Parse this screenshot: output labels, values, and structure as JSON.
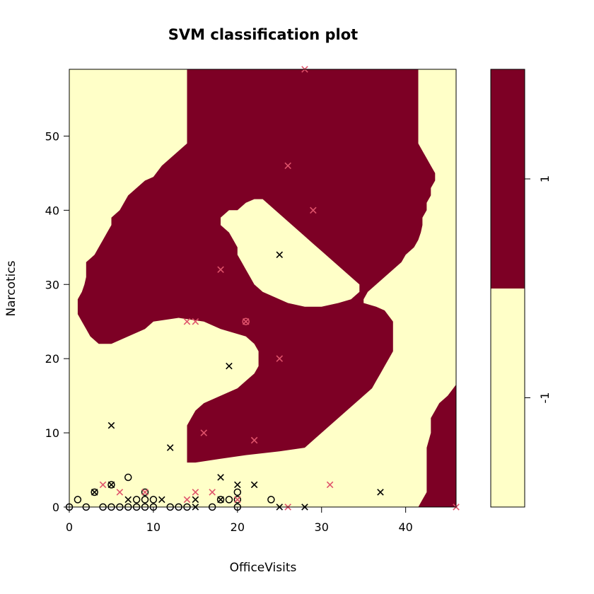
{
  "chart_data": {
    "type": "scatter",
    "title": "SVM classification plot",
    "xlabel": "OfficeVisits",
    "ylabel": "Narcotics",
    "xlim": [
      0,
      46
    ],
    "ylim": [
      0,
      59
    ],
    "xticks": [
      "0",
      "10",
      "20",
      "30",
      "40"
    ],
    "yticks": [
      "0",
      "10",
      "20",
      "30",
      "40",
      "50"
    ],
    "grid": false,
    "legend": {
      "placement": "right",
      "levels": [
        "-1",
        "1"
      ],
      "colors": [
        "#FFFFC8",
        "#7D0025"
      ]
    },
    "region_color_neg": "#FFFFC8",
    "region_color_pos": "#7D0025",
    "region_pos_polygons": [
      [
        [
          14,
          59
        ],
        [
          41.5,
          59
        ],
        [
          41.5,
          49
        ],
        [
          42,
          48
        ],
        [
          42.5,
          47
        ],
        [
          43,
          46
        ],
        [
          43.5,
          45
        ],
        [
          43.5,
          44
        ],
        [
          43,
          43
        ],
        [
          43,
          42
        ],
        [
          42.5,
          41
        ],
        [
          42.5,
          40
        ],
        [
          42,
          39
        ],
        [
          42,
          38
        ],
        [
          41.8,
          37
        ],
        [
          41.5,
          36
        ],
        [
          41,
          35
        ],
        [
          40,
          34
        ],
        [
          39.5,
          33
        ],
        [
          38.5,
          32
        ],
        [
          37.5,
          31
        ],
        [
          36.5,
          30
        ],
        [
          35.5,
          29
        ],
        [
          35,
          28
        ],
        [
          35,
          27.5
        ],
        [
          36.5,
          27
        ],
        [
          37.5,
          26.5
        ],
        [
          38.5,
          25
        ],
        [
          38.5,
          23
        ],
        [
          38.5,
          21
        ],
        [
          38,
          20
        ],
        [
          37.5,
          19
        ],
        [
          37,
          18
        ],
        [
          36.5,
          17
        ],
        [
          36,
          16
        ],
        [
          35,
          15
        ],
        [
          34,
          14
        ],
        [
          33,
          13
        ],
        [
          32,
          12
        ],
        [
          31,
          11
        ],
        [
          30,
          10
        ],
        [
          29,
          9
        ],
        [
          28,
          8
        ],
        [
          25,
          7.5
        ],
        [
          21,
          7
        ],
        [
          18,
          6.5
        ],
        [
          15,
          6
        ],
        [
          14,
          6
        ],
        [
          14,
          8
        ],
        [
          14,
          11
        ],
        [
          14.5,
          12
        ],
        [
          15,
          13
        ],
        [
          16,
          14
        ],
        [
          18,
          15
        ],
        [
          20,
          16
        ],
        [
          21,
          17
        ],
        [
          22,
          18
        ],
        [
          22.5,
          19
        ],
        [
          22.5,
          20
        ],
        [
          22.5,
          21
        ],
        [
          22,
          22
        ],
        [
          21,
          23
        ],
        [
          18,
          24
        ],
        [
          16,
          25
        ],
        [
          13,
          25.5
        ],
        [
          10,
          25
        ],
        [
          9,
          24
        ],
        [
          7,
          23
        ],
        [
          5,
          22
        ],
        [
          3.5,
          22
        ],
        [
          2.5,
          23
        ],
        [
          2,
          24
        ],
        [
          1.5,
          25
        ],
        [
          1,
          26
        ],
        [
          1,
          27
        ],
        [
          1,
          28
        ],
        [
          1.5,
          29
        ],
        [
          1.8,
          30
        ],
        [
          2,
          31
        ],
        [
          2,
          32
        ],
        [
          2,
          33
        ],
        [
          3,
          34
        ],
        [
          3.5,
          35
        ],
        [
          4,
          36
        ],
        [
          4.5,
          37
        ],
        [
          5,
          38
        ],
        [
          5,
          39
        ],
        [
          6,
          40
        ],
        [
          6.5,
          41
        ],
        [
          7,
          42
        ],
        [
          8,
          43
        ],
        [
          9,
          44
        ],
        [
          10,
          44.5
        ],
        [
          11,
          46
        ],
        [
          12,
          47
        ],
        [
          13,
          48
        ],
        [
          14,
          49
        ],
        [
          14,
          52
        ],
        [
          14,
          55
        ],
        [
          14,
          59
        ]
      ],
      [
        [
          41.5,
          0
        ],
        [
          46,
          0
        ],
        [
          46,
          16.5
        ],
        [
          45,
          15
        ],
        [
          44,
          14
        ],
        [
          43.5,
          13
        ],
        [
          43,
          12
        ],
        [
          43,
          10
        ],
        [
          42.5,
          8
        ],
        [
          42.5,
          5
        ],
        [
          42.5,
          2
        ],
        [
          42,
          1
        ],
        [
          41.5,
          0
        ]
      ]
    ],
    "region_neg_holes": [
      [
        [
          20,
          40
        ],
        [
          21,
          41
        ],
        [
          22,
          41.5
        ],
        [
          23,
          41.5
        ],
        [
          24,
          40.5
        ],
        [
          25,
          39.5
        ],
        [
          26,
          38.5
        ],
        [
          27,
          37.5
        ],
        [
          28,
          36.5
        ],
        [
          29,
          35.5
        ],
        [
          30,
          34.5
        ],
        [
          31,
          33.5
        ],
        [
          32,
          32.5
        ],
        [
          33,
          31.5
        ],
        [
          34,
          30.5
        ],
        [
          34.5,
          30
        ],
        [
          34.5,
          29
        ],
        [
          33.5,
          28
        ],
        [
          32,
          27.5
        ],
        [
          30,
          27
        ],
        [
          28,
          27
        ],
        [
          26,
          27.5
        ],
        [
          25,
          28
        ],
        [
          24,
          28.5
        ],
        [
          23,
          29
        ],
        [
          22.5,
          29.5
        ],
        [
          22,
          30
        ],
        [
          21.5,
          31
        ],
        [
          21,
          32
        ],
        [
          20.5,
          33
        ],
        [
          20,
          34
        ],
        [
          20,
          35
        ],
        [
          19.5,
          36
        ],
        [
          19,
          37
        ],
        [
          18,
          38
        ],
        [
          18,
          39
        ],
        [
          19,
          40
        ],
        [
          20,
          40
        ]
      ]
    ],
    "points": [
      {
        "x": 0,
        "y": 0,
        "marker": "o",
        "color": "#000000"
      },
      {
        "x": 1,
        "y": 1,
        "marker": "o",
        "color": "#000000"
      },
      {
        "x": 2,
        "y": 0,
        "marker": "o",
        "color": "#000000"
      },
      {
        "x": 3,
        "y": 2,
        "marker": "o",
        "color": "#000000"
      },
      {
        "x": 3,
        "y": 2,
        "marker": "x",
        "color": "#000000"
      },
      {
        "x": 4,
        "y": 0,
        "marker": "o",
        "color": "#000000"
      },
      {
        "x": 4,
        "y": 3,
        "marker": "x",
        "color": "#DF536B"
      },
      {
        "x": 5,
        "y": 3,
        "marker": "o",
        "color": "#000000"
      },
      {
        "x": 5,
        "y": 3,
        "marker": "x",
        "color": "#000000"
      },
      {
        "x": 5,
        "y": 0,
        "marker": "o",
        "color": "#000000"
      },
      {
        "x": 5,
        "y": 11,
        "marker": "x",
        "color": "#000000"
      },
      {
        "x": 6,
        "y": 0,
        "marker": "o",
        "color": "#000000"
      },
      {
        "x": 6,
        "y": 2,
        "marker": "x",
        "color": "#DF536B"
      },
      {
        "x": 7,
        "y": 0,
        "marker": "o",
        "color": "#000000"
      },
      {
        "x": 7,
        "y": 1,
        "marker": "x",
        "color": "#000000"
      },
      {
        "x": 7,
        "y": 4,
        "marker": "o",
        "color": "#000000"
      },
      {
        "x": 8,
        "y": 0,
        "marker": "o",
        "color": "#000000"
      },
      {
        "x": 8,
        "y": 1,
        "marker": "o",
        "color": "#000000"
      },
      {
        "x": 9,
        "y": 0,
        "marker": "o",
        "color": "#000000"
      },
      {
        "x": 9,
        "y": 1,
        "marker": "o",
        "color": "#000000"
      },
      {
        "x": 9,
        "y": 2,
        "marker": "o",
        "color": "#000000"
      },
      {
        "x": 9,
        "y": 2,
        "marker": "x",
        "color": "#DF536B"
      },
      {
        "x": 10,
        "y": 0,
        "marker": "o",
        "color": "#000000"
      },
      {
        "x": 10,
        "y": 1,
        "marker": "o",
        "color": "#000000"
      },
      {
        "x": 11,
        "y": 1,
        "marker": "x",
        "color": "#000000"
      },
      {
        "x": 12,
        "y": 0,
        "marker": "o",
        "color": "#000000"
      },
      {
        "x": 12,
        "y": 8,
        "marker": "x",
        "color": "#000000"
      },
      {
        "x": 13,
        "y": 0,
        "marker": "o",
        "color": "#000000"
      },
      {
        "x": 14,
        "y": 0,
        "marker": "o",
        "color": "#000000"
      },
      {
        "x": 14,
        "y": 1,
        "marker": "x",
        "color": "#DF536B"
      },
      {
        "x": 14,
        "y": 25,
        "marker": "x",
        "color": "#DF536B"
      },
      {
        "x": 15,
        "y": 0,
        "marker": "x",
        "color": "#000000"
      },
      {
        "x": 15,
        "y": 1,
        "marker": "x",
        "color": "#000000"
      },
      {
        "x": 15,
        "y": 2,
        "marker": "x",
        "color": "#DF536B"
      },
      {
        "x": 15,
        "y": 25,
        "marker": "x",
        "color": "#DF536B"
      },
      {
        "x": 16,
        "y": 10,
        "marker": "x",
        "color": "#DF536B"
      },
      {
        "x": 17,
        "y": 0,
        "marker": "o",
        "color": "#000000"
      },
      {
        "x": 17,
        "y": 2,
        "marker": "x",
        "color": "#DF536B"
      },
      {
        "x": 18,
        "y": 1,
        "marker": "o",
        "color": "#000000"
      },
      {
        "x": 18,
        "y": 1,
        "marker": "x",
        "color": "#000000"
      },
      {
        "x": 18,
        "y": 4,
        "marker": "x",
        "color": "#000000"
      },
      {
        "x": 18,
        "y": 32,
        "marker": "x",
        "color": "#DF536B"
      },
      {
        "x": 19,
        "y": 1,
        "marker": "o",
        "color": "#000000"
      },
      {
        "x": 19,
        "y": 19,
        "marker": "x",
        "color": "#000000"
      },
      {
        "x": 20,
        "y": 0,
        "marker": "o",
        "color": "#000000"
      },
      {
        "x": 20,
        "y": 1,
        "marker": "o",
        "color": "#000000"
      },
      {
        "x": 20,
        "y": 1,
        "marker": "x",
        "color": "#DF536B"
      },
      {
        "x": 20,
        "y": 2,
        "marker": "o",
        "color": "#000000"
      },
      {
        "x": 20,
        "y": 3,
        "marker": "x",
        "color": "#000000"
      },
      {
        "x": 21,
        "y": 25,
        "marker": "o",
        "color": "#DF536B"
      },
      {
        "x": 21,
        "y": 25,
        "marker": "x",
        "color": "#DF536B"
      },
      {
        "x": 22,
        "y": 3,
        "marker": "x",
        "color": "#000000"
      },
      {
        "x": 22,
        "y": 9,
        "marker": "x",
        "color": "#DF536B"
      },
      {
        "x": 24,
        "y": 1,
        "marker": "o",
        "color": "#000000"
      },
      {
        "x": 25,
        "y": 0,
        "marker": "x",
        "color": "#000000"
      },
      {
        "x": 25,
        "y": 20,
        "marker": "x",
        "color": "#DF536B"
      },
      {
        "x": 25,
        "y": 34,
        "marker": "x",
        "color": "#000000"
      },
      {
        "x": 26,
        "y": 0,
        "marker": "x",
        "color": "#DF536B"
      },
      {
        "x": 26,
        "y": 46,
        "marker": "x",
        "color": "#DF536B"
      },
      {
        "x": 28,
        "y": 0,
        "marker": "x",
        "color": "#000000"
      },
      {
        "x": 28,
        "y": 59,
        "marker": "x",
        "color": "#DF536B"
      },
      {
        "x": 29,
        "y": 40,
        "marker": "x",
        "color": "#DF536B"
      },
      {
        "x": 31,
        "y": 3,
        "marker": "x",
        "color": "#DF536B"
      },
      {
        "x": 37,
        "y": 2,
        "marker": "x",
        "color": "#000000"
      },
      {
        "x": 46,
        "y": 0,
        "marker": "x",
        "color": "#DF536B"
      }
    ]
  }
}
